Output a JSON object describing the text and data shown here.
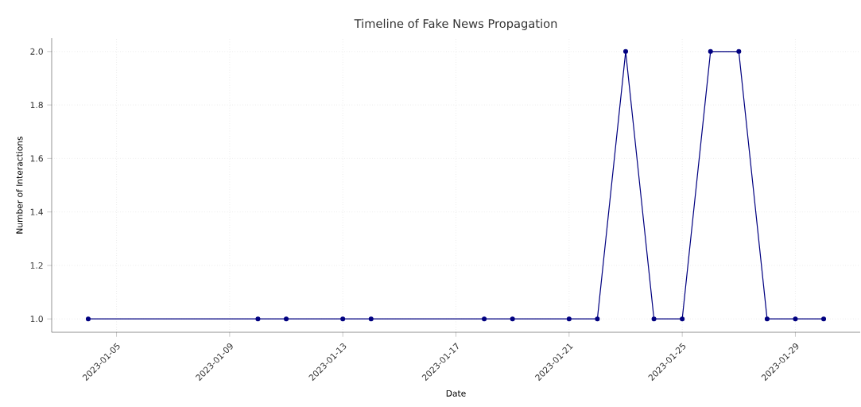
{
  "chart_data": {
    "type": "line",
    "title": "Timeline of Fake News Propagation",
    "xlabel": "Date",
    "ylabel": "Number of Interactions",
    "x": [
      "2023-01-04",
      "2023-01-10",
      "2023-01-11",
      "2023-01-13",
      "2023-01-14",
      "2023-01-18",
      "2023-01-19",
      "2023-01-21",
      "2023-01-22",
      "2023-01-23",
      "2023-01-24",
      "2023-01-25",
      "2023-01-26",
      "2023-01-27",
      "2023-01-28",
      "2023-01-29",
      "2023-01-30"
    ],
    "values": [
      1,
      1,
      1,
      1,
      1,
      1,
      1,
      1,
      1,
      2,
      1,
      1,
      2,
      2,
      1,
      1,
      1
    ],
    "color": "#000080",
    "marker": "circle",
    "line_style": "solid",
    "grid": true,
    "xlim": [
      "2023-01-02T17:00",
      "2023-01-31T07:00"
    ],
    "xticks": [
      "2023-01-05",
      "2023-01-09",
      "2023-01-13",
      "2023-01-17",
      "2023-01-21",
      "2023-01-25",
      "2023-01-29"
    ],
    "ylim": [
      0.95,
      2.05
    ],
    "yticks": [
      {
        "value": 1.0,
        "label": "1.0"
      },
      {
        "value": 1.2,
        "label": "1.2"
      },
      {
        "value": 1.4,
        "label": "1.4"
      },
      {
        "value": 1.6,
        "label": "1.6"
      },
      {
        "value": 1.8,
        "label": "1.8"
      },
      {
        "value": 2.0,
        "label": "2.0"
      }
    ]
  }
}
